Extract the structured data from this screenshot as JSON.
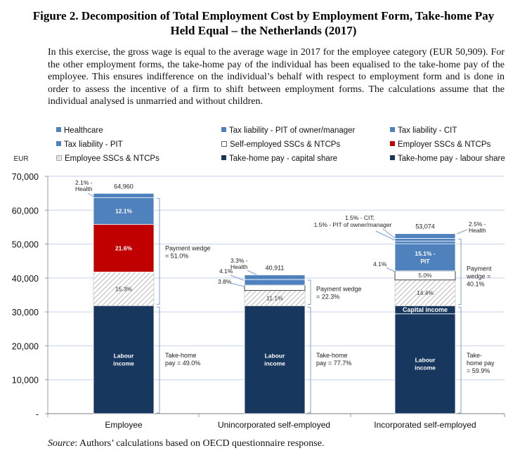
{
  "title_line1": "Figure 2. Decomposition of Total Employment Cost by Employment Form, Take-home Pay",
  "title_line2": "Held Equal – the Netherlands (2017)",
  "intro": "In this exercise, the gross wage is equal to the average wage in 2017 for the employee category (EUR 50,909). For the other employment forms, the take-home pay of the individual has been equalised to the take-home pay of the employee. This ensures indifference on the individual’s behalf with respect to employment form and is done in order to assess the incentive of a firm to shift between employment forms. The calculations assume that the individual analysed is unmarried and without children.",
  "source_label": "Source",
  "source_text": ": Authors’ calculations based on OECD questionnaire response.",
  "colors": {
    "light_blue": "#4f81bd",
    "red": "#c00000",
    "navy": "#17375e",
    "grid": "#c5d3ea",
    "bracket": "#7f9fd0"
  },
  "chart_data": {
    "type": "bar",
    "stacked": true,
    "title": "Decomposition of Total Employment Cost by Employment Form, Take-home Pay Held Equal – the Netherlands (2017)",
    "ylabel": "EUR",
    "xlabel": "",
    "ylim": [
      0,
      70000
    ],
    "yticks": [
      0,
      10000,
      20000,
      30000,
      40000,
      50000,
      60000,
      70000
    ],
    "ytick_labels": [
      "-",
      "10,000",
      "20,000",
      "30,000",
      "40,000",
      "50,000",
      "60,000",
      "70,000"
    ],
    "grid": true,
    "legend_position": "top",
    "categories": [
      "Employee",
      "Unincorporated self-employed",
      "Incorporated self-employed"
    ],
    "legend": [
      {
        "label": "Healthcare",
        "style": "light_blue"
      },
      {
        "label": "Tax liability - PIT of owner/manager",
        "style": "light_blue"
      },
      {
        "label": "Tax liability - CIT",
        "style": "light_blue"
      },
      {
        "label": "Tax liability - PIT",
        "style": "light_blue"
      },
      {
        "label": "Self-employed SSCs & NTCPs",
        "style": "white"
      },
      {
        "label": "Employer SSCs & NTCPs",
        "style": "red"
      },
      {
        "label": "Employee SSCs & NTCPs",
        "style": "hatch"
      },
      {
        "label": "Take-home pay - capital share",
        "style": "navy"
      },
      {
        "label": "Take-home pay - labour share",
        "style": "navy"
      }
    ],
    "bars": [
      {
        "category": "Employee",
        "total": 64960,
        "total_label": "64,960",
        "segments": [
          {
            "series": "Take-home pay - labour share",
            "value": 31830,
            "style": "navy",
            "label": "Labour income"
          },
          {
            "series": "Employee SSCs & NTCPs",
            "value": 9939,
            "style": "hatch",
            "label": "15.3%"
          },
          {
            "series": "Employer SSCs & NTCPs",
            "value": 14031,
            "style": "red",
            "label": "21.6%"
          },
          {
            "series": "Tax liability - PIT",
            "value": 7860,
            "style": "light_blue",
            "label": "12.1%"
          },
          {
            "series": "Healthcare",
            "value": 1300,
            "style": "light_blue",
            "label": ""
          }
        ],
        "callouts": [
          "2.1% - Health"
        ],
        "wedge_label": "Payment wedge = 51.0%",
        "takehome_label": "Take-home pay = 49.0%"
      },
      {
        "category": "Unincorporated self-employed",
        "total": 40911,
        "total_label": "40,911",
        "segments": [
          {
            "series": "Take-home pay - labour share",
            "value": 31790,
            "style": "navy",
            "label": "Labour income"
          },
          {
            "series": "Employee SSCs & NTCPs",
            "value": 4541,
            "style": "hatch",
            "label": "11.1%"
          },
          {
            "series": "Self-employed SSCs & NTCPs",
            "value": 1555,
            "style": "white",
            "label": ""
          },
          {
            "series": "Tax liability - PIT",
            "value": 1677,
            "style": "light_blue",
            "label": ""
          },
          {
            "series": "Healthcare",
            "value": 1348,
            "style": "light_blue",
            "label": ""
          }
        ],
        "callouts": [
          "3.3% - Health",
          "4.1%",
          "3.8%"
        ],
        "wedge_label": "Payment wedge = 22.3%",
        "takehome_label": "Take-home pay = 77.7%"
      },
      {
        "category": "Incorporated self-employed",
        "total": 53074,
        "total_label": "53,074",
        "segments": [
          {
            "series": "Take-home pay - labour share",
            "value": 29450,
            "style": "navy",
            "label": "Labour income"
          },
          {
            "series": "Take-home pay - capital share",
            "value": 2340,
            "style": "navy",
            "label": "Capital income"
          },
          {
            "series": "Employee SSCs & NTCPs",
            "value": 7643,
            "style": "hatch",
            "label": "14.4%"
          },
          {
            "series": "Self-employed SSCs & NTCPs",
            "value": 2654,
            "style": "white",
            "label": "5.0%"
          },
          {
            "series": "Tax liability - PIT",
            "value": 8014,
            "style": "light_blue",
            "label": "15.1% - PIT"
          },
          {
            "series": "Tax liability - PIT of owner/manager",
            "value": 796,
            "style": "light_blue",
            "label": ""
          },
          {
            "series": "Tax liability - CIT",
            "value": 796,
            "style": "light_blue",
            "label": ""
          },
          {
            "series": "Healthcare",
            "value": 1381,
            "style": "light_blue",
            "label": ""
          }
        ],
        "callouts": [
          "1.5% - CIT;",
          "1.5% - PIT of owner/manager",
          "2.5% - Health",
          "4.1%"
        ],
        "wedge_label": "Payment wedge = 40.1%",
        "takehome_label": "Take-home pay = 59.9%"
      }
    ]
  }
}
